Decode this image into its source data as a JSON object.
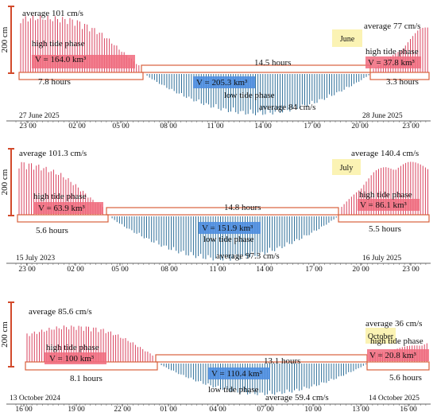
{
  "scale_label": "200 cm",
  "colors": {
    "high": "#d9435f",
    "high_fill": "#f06a7d",
    "low": "#2f6f99",
    "low_fill": "#4d8de0",
    "month_bg": "#fbf3b4",
    "box_edge": "#d9603c"
  },
  "panels": [
    {
      "month": "June",
      "high_avg_left": "average 101 cm/s",
      "high_phase_left": "high tide phase",
      "volume_left": "V = 164.0 km³",
      "duration_left": "7.8 hours",
      "duration_mid": "14.5 hours",
      "low_volume": "V = 205.3 km³",
      "low_phase": "low tide phase",
      "low_avg": "average 84 cm/s",
      "high_avg_right": "average 77 cm/s",
      "high_phase_right": "high tide phase",
      "volume_right": "V = 37.8 km³",
      "duration_right": "3.3 hours",
      "date_left": "27 June 2025",
      "date_right": "28 June 2025",
      "ticks": [
        "23 00",
        "02 00",
        "05 00",
        "08 00",
        "11 00",
        "14 00",
        "17 00",
        "20 00",
        "23 00"
      ]
    },
    {
      "month": "July",
      "high_avg_left": "average 101.3 cm/s",
      "high_phase_left": "high tide phase",
      "volume_left": "V = 63.9 km³",
      "duration_left": "5.6 hours",
      "duration_mid": "14.8 hours",
      "low_volume": "V = 151.9 km³",
      "low_phase": "low tide phase",
      "low_avg": "average 97.3 cm/s",
      "high_avg_right": "average 140.4 cm/s",
      "high_phase_right": "high tide phase",
      "volume_right": "V = 86.1 km³",
      "duration_right": "5.5 hours",
      "date_left": "15 July 2023",
      "date_right": "16 July 2025",
      "ticks": [
        "23 00",
        "02 00",
        "05 00",
        "08 00",
        "11 00",
        "14 00",
        "17 00",
        "20 00",
        "23 00"
      ]
    },
    {
      "month": "October",
      "high_avg_left": "average 85.6 cm/s",
      "high_phase_left": "high tide phase",
      "volume_left": "V = 100 km³",
      "duration_left": "8.1 hours",
      "duration_mid": "13.1 hours",
      "low_volume": "V = 110.4 km³",
      "low_phase": "low tide phase",
      "low_avg": "average 59.4 cm/s",
      "high_avg_right": "average 36 cm/s",
      "high_phase_right": "high tide phase",
      "volume_right": "V = 20.8 km³",
      "duration_right": "5.6 hours",
      "date_left": "13 October 2024",
      "date_right": "14 October 2025",
      "ticks": [
        "16 00",
        "19 00",
        "22 00",
        "01 00",
        "04 00",
        "07 00",
        "10 00",
        "13 00",
        "16 00"
      ]
    }
  ]
}
